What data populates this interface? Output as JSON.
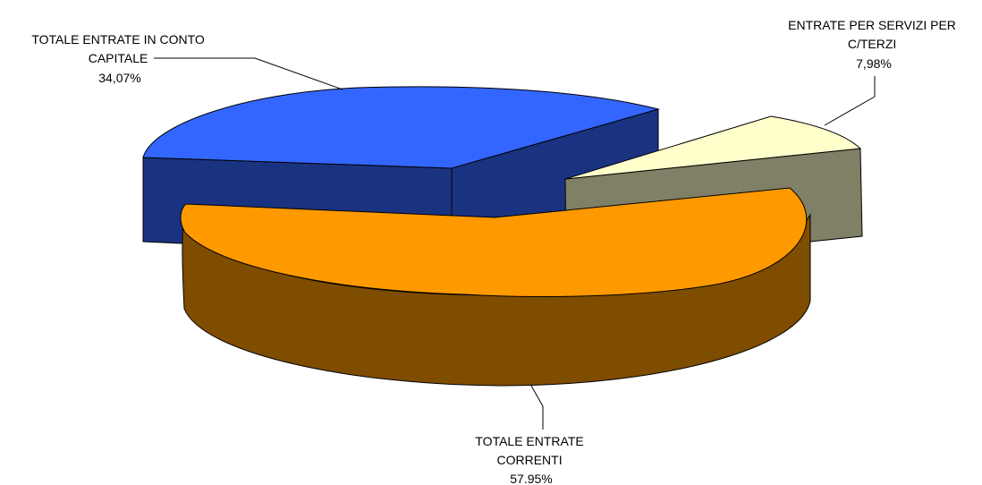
{
  "chart_data": {
    "type": "pie",
    "style": "3d-exploded",
    "slices": [
      {
        "label_lines": [
          "TOTALE ENTRATE",
          "CORRENTI"
        ],
        "value_label": "57.95%",
        "value": 57.95,
        "top_color": "#ff9900",
        "side_color": "#7f4d00"
      },
      {
        "label_lines": [
          "TOTALE ENTRATE IN CONTO",
          "CAPITALE"
        ],
        "value_label": "34,07%",
        "value": 34.07,
        "top_color": "#3366ff",
        "side_color": "#1a3380"
      },
      {
        "label_lines": [
          "ENTRATE PER SERVIZI PER",
          "C/TERZI"
        ],
        "value_label": "7,98%",
        "value": 7.98,
        "top_color": "#ffffcc",
        "side_color": "#808066"
      }
    ]
  }
}
